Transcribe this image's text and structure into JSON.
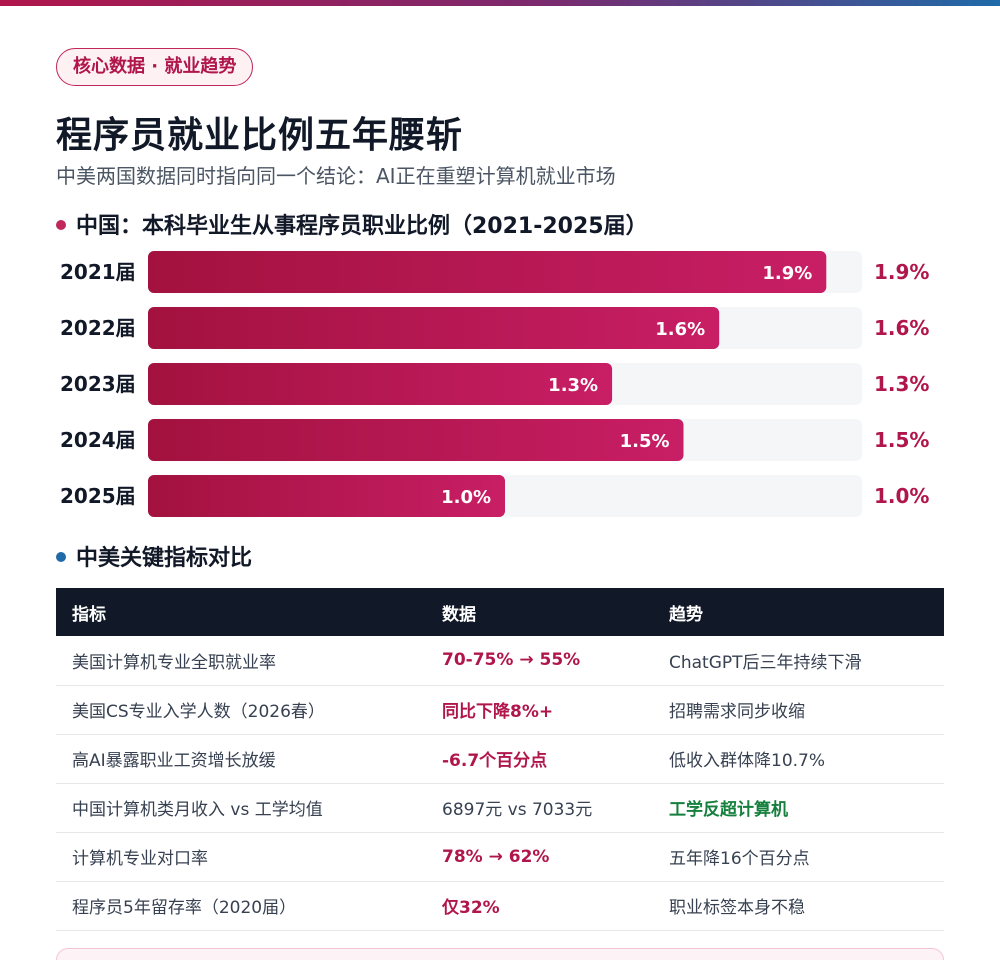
{
  "tag": "核心数据 · 就业趋势",
  "title": "程序员就业比例五年腰斩",
  "subtitle": "中美两国数据同时指向同一个结论：AI正在重塑计算机就业市场",
  "colors": {
    "accent": "#b0164b",
    "accent_light": "#c81e65",
    "blue": "#1f6aa8",
    "green": "#15803d",
    "header_dark": "#111827",
    "track": "#f5f6f8"
  },
  "section1": {
    "title": "中国：本科毕业生从事程序员职业比例（2021-2025届）",
    "dot_color": "#c0275a"
  },
  "section2": {
    "title": "中美关键指标对比",
    "dot_color": "#1f6aa8"
  },
  "chart_data": {
    "type": "bar",
    "orientation": "horizontal",
    "title": "中国：本科毕业生从事程序员职业比例（2021-2025届）",
    "categories": [
      "2021届",
      "2022届",
      "2023届",
      "2024届",
      "2025届"
    ],
    "values": [
      1.9,
      1.6,
      1.3,
      1.5,
      1.0
    ],
    "value_labels": [
      "1.9%",
      "1.6%",
      "1.3%",
      "1.5%",
      "1.0%"
    ],
    "xlim": [
      0,
      2.0
    ],
    "grid": false,
    "legend": "none"
  },
  "table": {
    "headers": [
      "指标",
      "数据",
      "趋势"
    ],
    "rows": [
      {
        "cells": [
          "美国计算机专业全职就业率",
          "70-75% → 55%",
          "ChatGPT后三年持续下滑"
        ],
        "highlight": [
          null,
          "red",
          null
        ]
      },
      {
        "cells": [
          "美国CS专业入学人数（2026春）",
          "同比下降8%+",
          "招聘需求同步收缩"
        ],
        "highlight": [
          null,
          "red",
          null
        ]
      },
      {
        "cells": [
          "高AI暴露职业工资增长放缓",
          "-6.7个百分点",
          "低收入群体降10.7%"
        ],
        "highlight": [
          null,
          "red",
          null
        ]
      },
      {
        "cells": [
          "中国计算机类月收入 vs 工学均值",
          "6897元 vs 7033元",
          "工学反超计算机"
        ],
        "highlight": [
          null,
          null,
          "green"
        ]
      },
      {
        "cells": [
          "计算机专业对口率",
          "78% → 62%",
          "五年降16个百分点"
        ],
        "highlight": [
          null,
          "red",
          null
        ]
      },
      {
        "cells": [
          "程序员5年留存率（2020届）",
          "仅32%",
          "职业标签本身不稳"
        ],
        "highlight": [
          null,
          "red",
          null
        ]
      }
    ]
  }
}
